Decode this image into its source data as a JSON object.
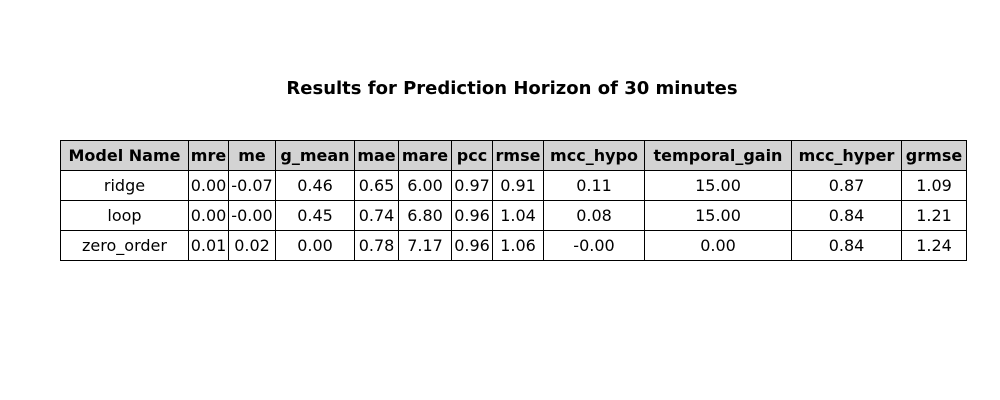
{
  "chart_data": {
    "type": "table",
    "title": "Results for Prediction Horizon of 30 minutes",
    "columns": [
      "Model Name",
      "mre",
      "me",
      "g_mean",
      "mae",
      "mare",
      "pcc",
      "rmse",
      "mcc_hypo",
      "temporal_gain",
      "mcc_hyper",
      "grmse"
    ],
    "rows": [
      [
        "ridge",
        "0.00",
        "-0.07",
        "0.46",
        "0.65",
        "6.00",
        "0.97",
        "0.91",
        "0.11",
        "15.00",
        "0.87",
        "1.09"
      ],
      [
        "loop",
        "0.00",
        "-0.00",
        "0.45",
        "0.74",
        "6.80",
        "0.96",
        "1.04",
        "0.08",
        "15.00",
        "0.84",
        "1.21"
      ],
      [
        "zero_order",
        "0.01",
        "0.02",
        "0.00",
        "0.78",
        "7.17",
        "0.96",
        "1.06",
        "-0.00",
        "0.00",
        "0.84",
        "1.24"
      ]
    ],
    "header_color": "#d3d3d3",
    "border_color": "#000000"
  }
}
